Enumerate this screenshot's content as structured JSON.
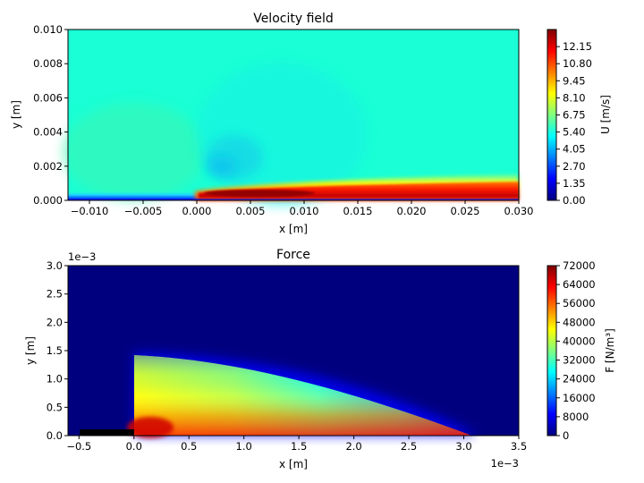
{
  "colors": {
    "colormap": "jet",
    "jet_stops": [
      "#00007f",
      "#0000ff",
      "#007fff",
      "#00ffff",
      "#7fff7f",
      "#ffff00",
      "#ff7f00",
      "#ff0000",
      "#7f0000"
    ],
    "background_velocity": "#1affd5",
    "background_force": "#00007f",
    "electrode": "#000000"
  },
  "chart_data": [
    {
      "type": "heatmap",
      "title": "Velocity field",
      "xlabel": "x [m]",
      "ylabel": "y [m]",
      "xlim": [
        -0.012,
        0.03
      ],
      "ylim": [
        0.0,
        0.01
      ],
      "xticks": [
        -0.01,
        -0.005,
        0.0,
        0.005,
        0.01,
        0.015,
        0.02,
        0.025,
        0.03
      ],
      "xtick_labels": [
        "−0.010",
        "−0.005",
        "0.000",
        "0.005",
        "0.010",
        "0.015",
        "0.020",
        "0.025",
        "0.030"
      ],
      "yticks": [
        0.0,
        0.002,
        0.004,
        0.006,
        0.008,
        0.01
      ],
      "ytick_labels": [
        "0.000",
        "0.002",
        "0.004",
        "0.006",
        "0.008",
        "0.010"
      ],
      "colorbar": {
        "label": "U [m/s]",
        "range": [
          0,
          13.5
        ],
        "ticks": [
          0.0,
          1.35,
          2.7,
          4.05,
          5.4,
          6.75,
          8.1,
          9.45,
          10.8,
          12.15
        ],
        "tick_labels": [
          "0.00",
          "1.35",
          "2.70",
          "4.05",
          "5.40",
          "6.75",
          "8.10",
          "9.45",
          "10.80",
          "12.15"
        ]
      },
      "background_value": 5.8,
      "features": [
        {
          "description": "jet",
          "x_start": 0.0,
          "x_end": 0.03,
          "peak_value": 13.5,
          "peak_x": 0.005
        },
        {
          "description": "near-wall low velocity upstream",
          "x_start": -0.012,
          "x_end": 0.0,
          "value": 1.0
        }
      ]
    },
    {
      "type": "heatmap",
      "title": "Force",
      "xlabel": "x [m]",
      "ylabel": "y [m]",
      "x_scale_label": "1e−3",
      "y_scale_label": "1e−3",
      "xlim": [
        -0.6,
        3.5
      ],
      "ylim": [
        0.0,
        3.0
      ],
      "xticks": [
        -0.5,
        0.0,
        0.5,
        1.0,
        1.5,
        2.0,
        2.5,
        3.0,
        3.5
      ],
      "xtick_labels": [
        "−0.5",
        "0.0",
        "0.5",
        "1.0",
        "1.5",
        "2.0",
        "2.5",
        "3.0",
        "3.5"
      ],
      "yticks": [
        0.0,
        0.5,
        1.0,
        1.5,
        2.0,
        2.5,
        3.0
      ],
      "ytick_labels": [
        "0.0",
        "0.5",
        "1.0",
        "1.5",
        "2.0",
        "2.5",
        "3.0"
      ],
      "colorbar": {
        "label": "F [N/m³]",
        "range": [
          0,
          72000
        ],
        "ticks": [
          0,
          8000,
          16000,
          24000,
          32000,
          40000,
          48000,
          56000,
          64000,
          72000
        ],
        "tick_labels": [
          "0",
          "8000",
          "16000",
          "24000",
          "32000",
          "40000",
          "48000",
          "56000",
          "64000",
          "72000"
        ]
      },
      "force_region": {
        "x_start": 0.0,
        "x_end": 3.05,
        "y_height_at_start": 1.45,
        "peak_value": 72000
      },
      "electrode": {
        "x_start": -0.5,
        "x_end": 0.0,
        "y_start": 0.0,
        "y_end": 0.1
      }
    }
  ]
}
